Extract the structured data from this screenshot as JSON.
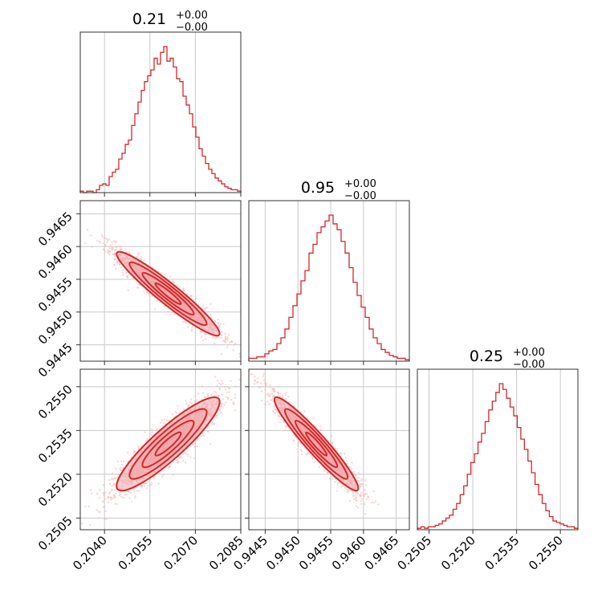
{
  "chart_data": {
    "type": "corner",
    "color": "#d62728",
    "parameters": [
      {
        "title_value": "0.21",
        "title_plus": "+0.00",
        "title_minus": "−0.00",
        "range": [
          0.2032,
          0.2085
        ],
        "ticks": [
          0.204,
          0.2055,
          0.207,
          0.2085
        ],
        "tick_labels": [
          "0.2040",
          "0.2055",
          "0.2070",
          "0.2085"
        ],
        "mean": 0.2061,
        "sd": 0.00085
      },
      {
        "title_value": "0.95",
        "title_plus": "+0.00",
        "title_minus": "−0.00",
        "range": [
          0.94425,
          0.9467
        ],
        "ticks": [
          0.9445,
          0.945,
          0.9455,
          0.946,
          0.9465
        ],
        "tick_labels": [
          "0.9445",
          "0.9450",
          "0.9455",
          "0.9460",
          "0.9465"
        ],
        "mean": 0.94528,
        "sd": 0.00032
      },
      {
        "title_value": "0.25",
        "title_plus": "+0.00",
        "title_minus": "−0.00",
        "range": [
          0.2501,
          0.2556
        ],
        "ticks": [
          0.2505,
          0.252,
          0.2535,
          0.255
        ],
        "tick_labels": [
          "0.2505",
          "0.2520",
          "0.2535",
          "0.2550"
        ],
        "mean": 0.25304,
        "sd": 0.0008
      }
    ],
    "histogram_heights": [
      [
        0.01,
        0.0,
        0.01,
        0.01,
        0.0,
        0.02,
        0.05,
        0.06,
        0.05,
        0.11,
        0.14,
        0.16,
        0.23,
        0.27,
        0.33,
        0.36,
        0.46,
        0.54,
        0.62,
        0.7,
        0.76,
        0.8,
        0.84,
        0.92,
        0.88,
        0.96,
        1.0,
        0.9,
        0.92,
        0.86,
        0.78,
        0.76,
        0.66,
        0.6,
        0.54,
        0.45,
        0.38,
        0.3,
        0.25,
        0.2,
        0.16,
        0.13,
        0.1,
        0.08,
        0.06,
        0.04,
        0.03,
        0.02,
        0.02,
        0.01
      ],
      [
        0.02,
        0.02,
        0.03,
        0.03,
        0.05,
        0.07,
        0.08,
        0.12,
        0.16,
        0.22,
        0.3,
        0.38,
        0.46,
        0.55,
        0.62,
        0.74,
        0.8,
        0.88,
        0.92,
        0.96,
        1.0,
        0.94,
        0.9,
        0.82,
        0.74,
        0.64,
        0.54,
        0.45,
        0.37,
        0.3,
        0.22,
        0.16,
        0.12,
        0.08,
        0.06,
        0.04,
        0.03,
        0.02,
        0.02,
        0.01
      ],
      [
        0.01,
        0.02,
        0.01,
        0.02,
        0.02,
        0.03,
        0.04,
        0.06,
        0.08,
        0.1,
        0.14,
        0.18,
        0.24,
        0.3,
        0.38,
        0.46,
        0.52,
        0.6,
        0.66,
        0.74,
        0.82,
        0.88,
        0.94,
        1.0,
        0.96,
        0.9,
        0.84,
        0.78,
        0.7,
        0.62,
        0.55,
        0.47,
        0.39,
        0.31,
        0.24,
        0.18,
        0.13,
        0.09,
        0.06,
        0.05,
        0.04,
        0.03,
        0.02,
        0.02,
        0.01
      ]
    ],
    "correlations": {
      "1-0": -0.95,
      "2-0": 0.9,
      "2-1": -0.95
    },
    "contour_levels_sigma": [
      0.5,
      1.0,
      1.5,
      2.0
    ],
    "sample_count": 2000
  }
}
